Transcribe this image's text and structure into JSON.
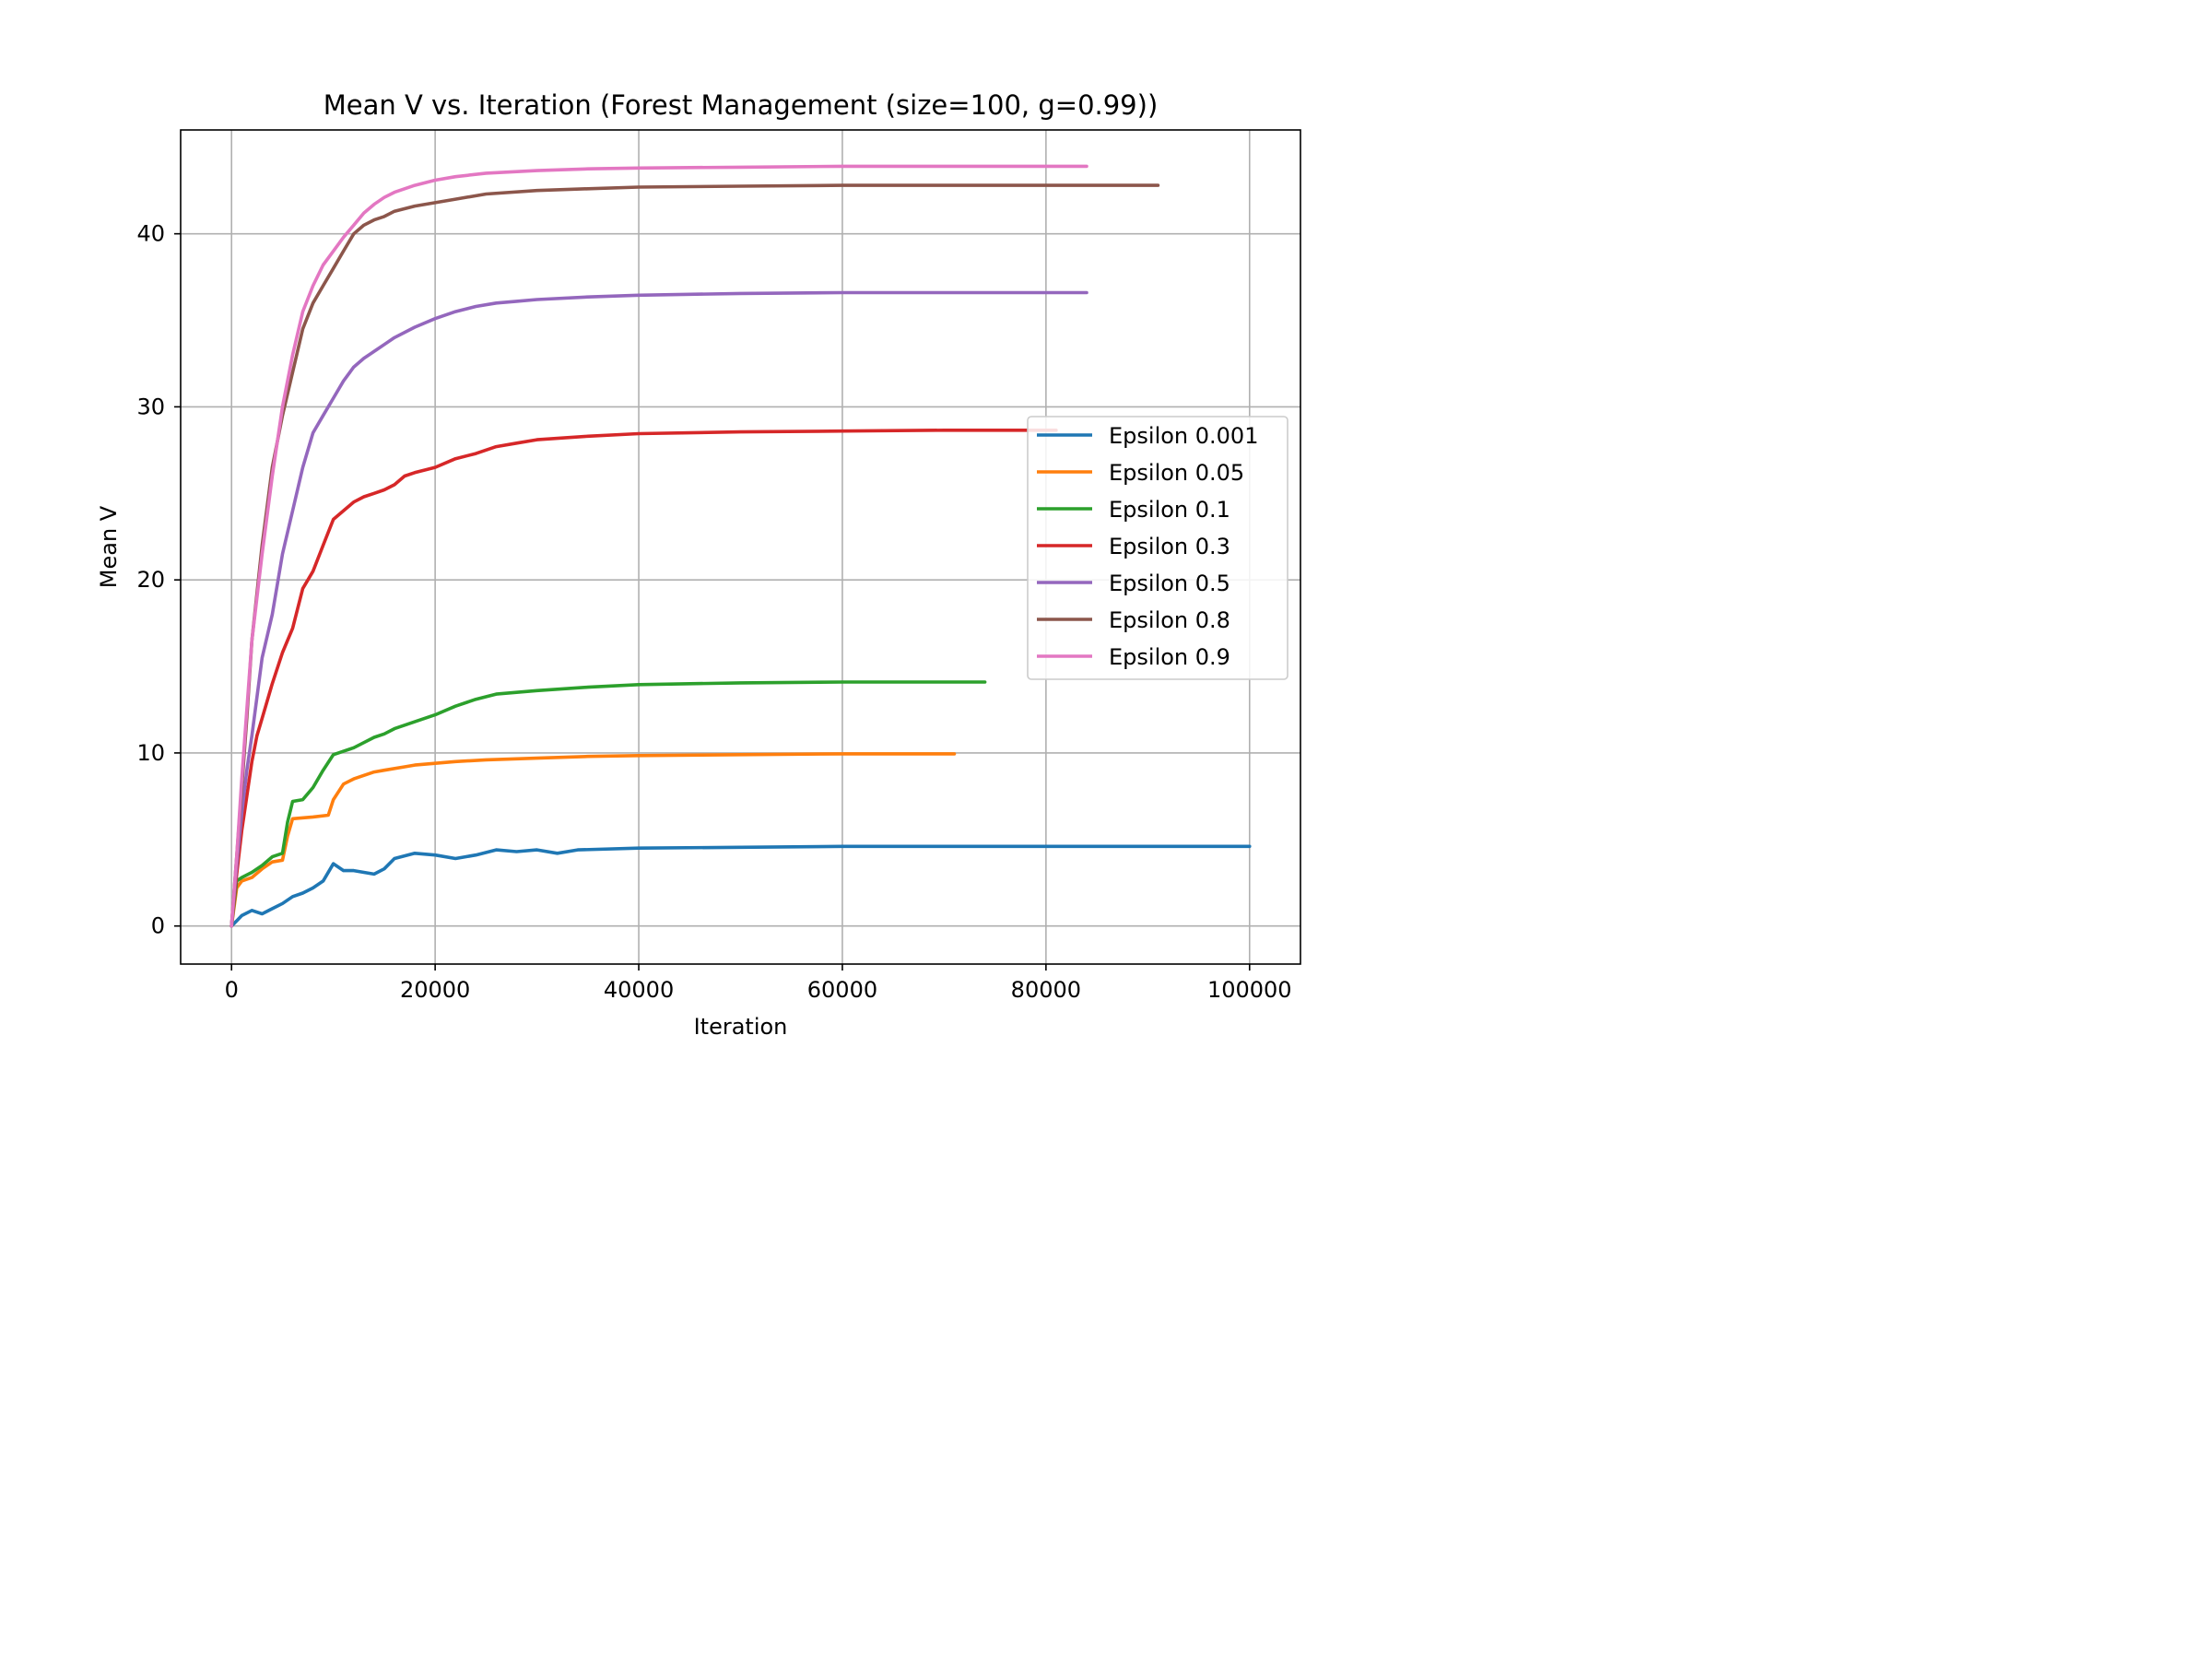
{
  "chart_data": {
    "type": "line",
    "title": "Mean V vs. Iteration (Forest Management (size=100, g=0.99))",
    "xlabel": "Iteration",
    "ylabel": "Mean V",
    "xlim": [
      -5000,
      105000
    ],
    "ylim": [
      -2.2,
      46
    ],
    "xticks": [
      0,
      20000,
      40000,
      60000,
      80000,
      100000
    ],
    "yticks": [
      0,
      10,
      20,
      30,
      40
    ],
    "xtick_labels": [
      "0",
      "20000",
      "40000",
      "60000",
      "80000",
      "100000"
    ],
    "ytick_labels": [
      "0",
      "10",
      "20",
      "30",
      "40"
    ],
    "grid": true,
    "legend_position": "center-right",
    "series": [
      {
        "name": "Epsilon 0.001",
        "color": "#1f77b4",
        "x": [
          0,
          500,
          1000,
          2000,
          3000,
          4000,
          5000,
          6000,
          7000,
          8000,
          9000,
          10000,
          11000,
          12000,
          13000,
          14000,
          15000,
          16000,
          18000,
          20000,
          22000,
          24000,
          26000,
          28000,
          30000,
          32000,
          34000,
          40000,
          50000,
          60000,
          70000,
          80000,
          90000,
          100000
        ],
        "y": [
          0,
          0.3,
          0.6,
          0.9,
          0.7,
          1.0,
          1.3,
          1.7,
          1.9,
          2.2,
          2.6,
          3.6,
          3.2,
          3.2,
          3.1,
          3.0,
          3.3,
          3.9,
          4.2,
          4.1,
          3.9,
          4.1,
          4.4,
          4.3,
          4.4,
          4.2,
          4.4,
          4.5,
          4.55,
          4.6,
          4.6,
          4.6,
          4.6,
          4.6
        ]
      },
      {
        "name": "Epsilon 0.05",
        "color": "#ff7f0e",
        "x": [
          0,
          500,
          1000,
          2000,
          3000,
          4000,
          5000,
          5500,
          6000,
          8000,
          9500,
          10000,
          11000,
          12000,
          13000,
          14000,
          15000,
          17000,
          18000,
          20000,
          22000,
          25000,
          30000,
          35000,
          40000,
          50000,
          60000,
          71000
        ],
        "y": [
          0,
          2.2,
          2.6,
          2.8,
          3.3,
          3.7,
          3.8,
          5.2,
          6.2,
          6.3,
          6.4,
          7.3,
          8.2,
          8.5,
          8.7,
          8.9,
          9.0,
          9.2,
          9.3,
          9.4,
          9.5,
          9.6,
          9.7,
          9.8,
          9.85,
          9.9,
          9.95,
          9.95
        ]
      },
      {
        "name": "Epsilon 0.1",
        "color": "#2ca02c",
        "x": [
          0,
          500,
          1000,
          2000,
          3000,
          4000,
          5000,
          5500,
          6000,
          7000,
          8000,
          9000,
          10000,
          11000,
          12000,
          13000,
          14000,
          15000,
          16000,
          18000,
          20000,
          22000,
          24000,
          26000,
          30000,
          35000,
          40000,
          50000,
          60000,
          74000
        ],
        "y": [
          0,
          2.6,
          2.8,
          3.1,
          3.5,
          4.0,
          4.2,
          6.0,
          7.2,
          7.3,
          8.0,
          9.0,
          9.9,
          10.1,
          10.3,
          10.6,
          10.9,
          11.1,
          11.4,
          11.8,
          12.2,
          12.7,
          13.1,
          13.4,
          13.6,
          13.8,
          13.95,
          14.05,
          14.1,
          14.1
        ]
      },
      {
        "name": "Epsilon 0.3",
        "color": "#d62728",
        "x": [
          0,
          500,
          1000,
          1500,
          2000,
          2500,
          3000,
          4000,
          5000,
          6000,
          7000,
          8000,
          9000,
          10000,
          11000,
          12000,
          13000,
          14000,
          15000,
          16000,
          17000,
          18000,
          20000,
          22000,
          24000,
          26000,
          28000,
          30000,
          35000,
          40000,
          50000,
          60000,
          70000,
          81000
        ],
        "y": [
          0,
          3.0,
          5.5,
          7.5,
          9.5,
          11.0,
          12.0,
          14.0,
          15.8,
          17.2,
          19.5,
          20.5,
          22.0,
          23.5,
          24.0,
          24.5,
          24.8,
          25.0,
          25.2,
          25.5,
          26.0,
          26.2,
          26.5,
          27.0,
          27.3,
          27.7,
          27.9,
          28.1,
          28.3,
          28.45,
          28.55,
          28.6,
          28.65,
          28.65
        ]
      },
      {
        "name": "Epsilon 0.5",
        "color": "#9467bd",
        "x": [
          0,
          500,
          1000,
          1500,
          2000,
          3000,
          4000,
          5000,
          6000,
          7000,
          8000,
          9000,
          10000,
          11000,
          12000,
          13000,
          14000,
          15000,
          16000,
          18000,
          20000,
          22000,
          24000,
          26000,
          28000,
          30000,
          35000,
          40000,
          50000,
          60000,
          70000,
          84000
        ],
        "y": [
          0,
          3.5,
          6.5,
          9.0,
          11.0,
          15.5,
          18.0,
          21.5,
          24.0,
          26.5,
          28.5,
          29.5,
          30.5,
          31.5,
          32.3,
          32.8,
          33.2,
          33.6,
          34.0,
          34.6,
          35.1,
          35.5,
          35.8,
          36.0,
          36.1,
          36.2,
          36.35,
          36.45,
          36.55,
          36.6,
          36.6,
          36.6
        ]
      },
      {
        "name": "Epsilon 0.8",
        "color": "#8c564b",
        "x": [
          0,
          500,
          1000,
          1500,
          2000,
          3000,
          4000,
          5000,
          6000,
          7000,
          8000,
          9000,
          10000,
          11000,
          12000,
          13000,
          14000,
          15000,
          16000,
          18000,
          20000,
          22000,
          25000,
          30000,
          35000,
          40000,
          50000,
          60000,
          70000,
          80000,
          91000
        ],
        "y": [
          0,
          4.0,
          8.0,
          12.0,
          16.5,
          22.0,
          26.5,
          29.5,
          32.0,
          34.5,
          36.0,
          37.0,
          38.0,
          39.0,
          40.0,
          40.5,
          40.8,
          41.0,
          41.3,
          41.6,
          41.8,
          42.0,
          42.3,
          42.5,
          42.6,
          42.7,
          42.75,
          42.8,
          42.8,
          42.8,
          42.8
        ]
      },
      {
        "name": "Epsilon 0.9",
        "color": "#e377c2",
        "x": [
          0,
          500,
          1000,
          1500,
          2000,
          3000,
          4000,
          5000,
          6000,
          7000,
          8000,
          9000,
          10000,
          11000,
          12000,
          13000,
          14000,
          15000,
          16000,
          18000,
          20000,
          22000,
          25000,
          30000,
          35000,
          40000,
          50000,
          60000,
          70000,
          84000
        ],
        "y": [
          0,
          4.0,
          8.5,
          12.5,
          16.5,
          21.5,
          26.0,
          30.0,
          33.0,
          35.5,
          37.0,
          38.2,
          39.0,
          39.8,
          40.5,
          41.2,
          41.7,
          42.1,
          42.4,
          42.8,
          43.1,
          43.3,
          43.5,
          43.65,
          43.75,
          43.8,
          43.85,
          43.9,
          43.9,
          43.9
        ]
      }
    ]
  }
}
